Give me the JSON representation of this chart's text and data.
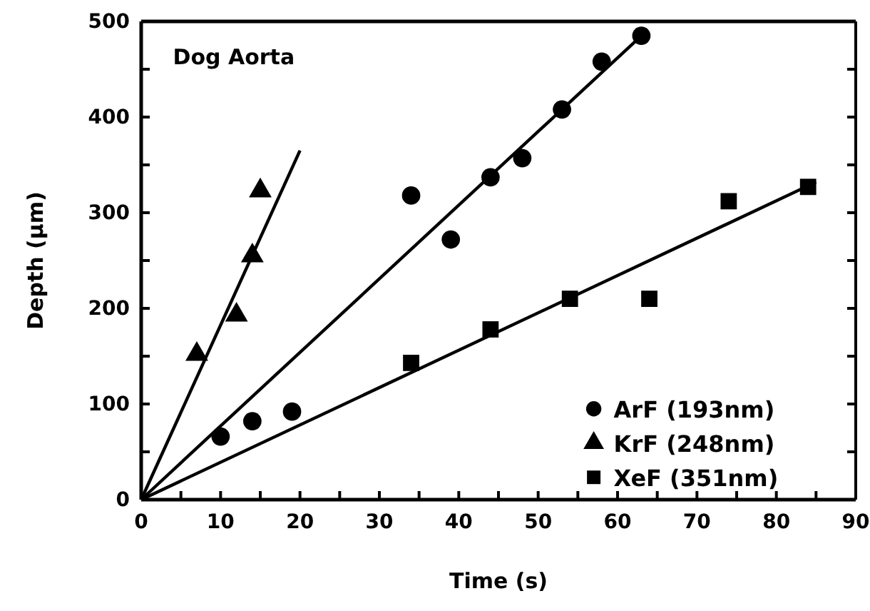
{
  "chart_data": {
    "type": "scatter",
    "title": "Dog Aorta",
    "xlabel": "Time (s)",
    "ylabel": "Depth (µm)",
    "xlim": [
      0,
      90
    ],
    "ylim": [
      0,
      500
    ],
    "xticks": [
      0,
      {
        "value": 5,
        "label": null
      },
      10,
      {
        "value": 15,
        "label": null
      },
      20,
      {
        "value": 25,
        "label": null
      },
      30,
      {
        "value": 35,
        "label": null
      },
      40,
      {
        "value": 45,
        "label": null
      },
      50,
      {
        "value": 55,
        "label": null
      },
      60,
      {
        "value": 65,
        "label": null
      },
      70,
      {
        "value": 75,
        "label": null
      },
      80,
      {
        "value": 85,
        "label": null
      },
      90
    ],
    "yticks": [
      0,
      {
        "value": 50,
        "label": null
      },
      100,
      {
        "value": 150,
        "label": null
      },
      200,
      {
        "value": 250,
        "label": null
      },
      300,
      {
        "value": 350,
        "label": null
      },
      400,
      {
        "value": 450,
        "label": null
      },
      500
    ],
    "legend": "bottom right",
    "grid": false,
    "series": [
      {
        "name": "ArF (193nm)",
        "color": "#000000",
        "marker": "circle",
        "x": [
          10,
          14,
          19,
          34,
          39,
          44,
          48,
          53,
          58,
          63
        ],
        "values": [
          66,
          82,
          92,
          318,
          272,
          337,
          357,
          408,
          458,
          485
        ]
      },
      {
        "name": "KrF (248nm)",
        "color": "#000000",
        "marker": "triangle",
        "x": [
          7,
          12,
          14,
          15
        ],
        "values": [
          152,
          193,
          255,
          323
        ]
      },
      {
        "name": "XeF (351nm)",
        "color": "#000000",
        "marker": "square",
        "x": [
          34,
          44,
          54,
          64,
          74,
          84
        ],
        "values": [
          143,
          178,
          210,
          210,
          312,
          327
        ]
      },
      {
        "type": "line",
        "color": "#000000",
        "x": [
          0,
          63
        ],
        "values": [
          0,
          485
        ]
      },
      {
        "type": "line",
        "color": "#000000",
        "x": [
          0,
          20
        ],
        "values": [
          0,
          365
        ]
      },
      {
        "type": "line",
        "color": "#000000",
        "x": [
          0,
          85
        ],
        "values": [
          0,
          332
        ]
      }
    ]
  }
}
